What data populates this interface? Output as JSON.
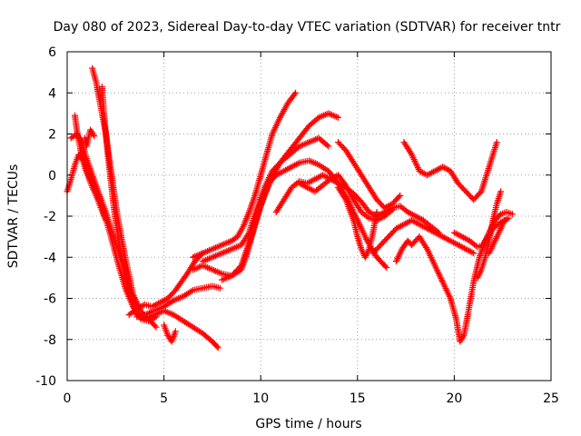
{
  "chart_data": {
    "type": "scatter",
    "title": "Day 080 of 2023, Sidereal Day-to-day VTEC variation (SDTVAR) for receiver tntr",
    "xlabel": "GPS time / hours",
    "ylabel": "SDTVAR / TECUs",
    "xlim": [
      0,
      25
    ],
    "ylim": [
      -10,
      6
    ],
    "xticks": [
      0,
      5,
      10,
      15,
      20,
      25
    ],
    "yticks": [
      -10,
      -8,
      -6,
      -4,
      -2,
      0,
      2,
      4,
      6
    ],
    "grid": true,
    "marker": "+",
    "color": "#ff0000",
    "series": [
      {
        "x": [
          1.3,
          1.5,
          1.7,
          2.0,
          2.3,
          2.6,
          3.0,
          3.4,
          3.8,
          4.2,
          4.6
        ],
        "y": [
          5.2,
          4.5,
          3.5,
          2.0,
          0.0,
          -2.0,
          -4.0,
          -5.8,
          -6.6,
          -7.0,
          -7.4
        ]
      },
      {
        "x": [
          1.8,
          1.9,
          2.1,
          2.4,
          2.7,
          3.0,
          3.3,
          3.6,
          4.0,
          4.5,
          5.0,
          5.5,
          6.0,
          6.5,
          7.0,
          7.5,
          7.8
        ],
        "y": [
          4.3,
          3.0,
          1.0,
          -1.5,
          -3.5,
          -5.0,
          -6.0,
          -6.8,
          -7.0,
          -6.8,
          -6.6,
          -6.8,
          -7.1,
          -7.4,
          -7.7,
          -8.1,
          -8.4
        ]
      },
      {
        "x": [
          0.0,
          0.2,
          0.4,
          0.6,
          0.9,
          1.2,
          1.5,
          1.8,
          2.2,
          2.6,
          3.0,
          3.4,
          3.8,
          4.2,
          4.6
        ],
        "y": [
          -0.8,
          -0.2,
          0.5,
          1.0,
          0.6,
          -0.2,
          -0.8,
          -1.5,
          -2.8,
          -4.2,
          -5.5,
          -6.4,
          -7.0,
          -7.1,
          -6.9
        ]
      },
      {
        "x": [
          0.2,
          0.5,
          0.8,
          1.0,
          1.3,
          1.6,
          2.0,
          2.4,
          2.8,
          3.2
        ],
        "y": [
          1.8,
          2.0,
          1.5,
          0.8,
          0.0,
          -0.8,
          -1.8,
          -3.0,
          -4.2,
          -5.4
        ]
      },
      {
        "x": [
          0.4,
          0.5,
          0.7,
          0.9,
          1.1,
          1.3,
          1.5,
          1.7,
          2.0
        ],
        "y": [
          2.9,
          2.2,
          1.2,
          0.4,
          -0.1,
          -0.6,
          -1.0,
          -1.5,
          -2.2
        ]
      },
      {
        "x": [
          0.9,
          1.0,
          1.2,
          1.4
        ],
        "y": [
          1.8,
          1.4,
          2.2,
          1.9
        ]
      },
      {
        "x": [
          3.2,
          3.6,
          4.0,
          4.4,
          4.8,
          5.2,
          5.6,
          6.2,
          6.6,
          7.0
        ],
        "y": [
          -6.8,
          -6.5,
          -6.3,
          -6.4,
          -6.2,
          -6.0,
          -5.6,
          -4.8,
          -4.2,
          -3.8
        ]
      },
      {
        "x": [
          3.6,
          4.0,
          4.5,
          5.0,
          5.5,
          6.0,
          6.5,
          7.0,
          7.5,
          7.9
        ],
        "y": [
          -6.9,
          -6.8,
          -6.6,
          -6.4,
          -6.1,
          -5.9,
          -5.6,
          -5.5,
          -5.4,
          -5.5
        ]
      },
      {
        "x": [
          5.0,
          5.2,
          5.4,
          5.6
        ],
        "y": [
          -7.3,
          -7.8,
          -8.1,
          -7.6
        ]
      },
      {
        "x": [
          6.5,
          7.0,
          7.5,
          8.0,
          8.5,
          8.8,
          9.1,
          9.4,
          9.7,
          10.0,
          10.3,
          10.6,
          11.0,
          11.4,
          11.8
        ],
        "y": [
          -4.0,
          -3.8,
          -3.6,
          -3.4,
          -3.2,
          -3.0,
          -2.5,
          -1.8,
          -1.0,
          0.0,
          1.0,
          2.0,
          2.8,
          3.5,
          4.0
        ]
      },
      {
        "x": [
          6.5,
          7.0,
          7.5,
          8.0,
          8.5,
          9.0,
          9.5,
          10.0,
          10.5,
          11.0,
          11.5,
          12.0,
          12.5,
          13.0,
          13.5,
          14.0
        ],
        "y": [
          -4.6,
          -4.4,
          -4.6,
          -4.8,
          -4.9,
          -4.4,
          -3.0,
          -1.5,
          -0.3,
          0.6,
          1.2,
          1.8,
          2.4,
          2.8,
          3.0,
          2.8
        ]
      },
      {
        "x": [
          7.0,
          7.5,
          8.0,
          8.5,
          9.0,
          9.4,
          9.8,
          10.2,
          10.6,
          11.0,
          11.5,
          12.0,
          12.5,
          13.0,
          13.5
        ],
        "y": [
          -4.2,
          -4.0,
          -3.8,
          -3.6,
          -3.4,
          -2.8,
          -1.6,
          -0.6,
          0.2,
          0.6,
          1.0,
          1.4,
          1.6,
          1.8,
          1.4
        ]
      },
      {
        "x": [
          8.0,
          8.5,
          9.0,
          9.3,
          9.6,
          9.9,
          10.2,
          10.5,
          10.8,
          11.2,
          11.6,
          12.0,
          12.5,
          13.0,
          13.5,
          14.0,
          14.5,
          15.0,
          15.5,
          16.0,
          16.5
        ],
        "y": [
          -5.1,
          -4.9,
          -4.6,
          -3.8,
          -2.8,
          -1.8,
          -0.9,
          -0.3,
          0.0,
          0.2,
          0.4,
          0.6,
          0.7,
          0.5,
          0.2,
          -0.4,
          -1.2,
          -2.2,
          -3.2,
          -4.0,
          -4.5
        ]
      },
      {
        "x": [
          10.8,
          11.2,
          11.6,
          12.0,
          12.4,
          12.8,
          13.2,
          13.6,
          14.0,
          14.4,
          14.8,
          15.2,
          15.6,
          16.0,
          16.4,
          16.8,
          17.2,
          17.6,
          18.0,
          18.4,
          18.8,
          19.2
        ],
        "y": [
          -1.8,
          -1.2,
          -0.6,
          -0.3,
          -0.4,
          -0.2,
          0.0,
          -0.2,
          -0.4,
          -0.6,
          -0.9,
          -1.3,
          -1.8,
          -2.0,
          -1.8,
          -1.6,
          -1.5,
          -1.8,
          -2.0,
          -2.2,
          -2.5,
          -2.8
        ]
      },
      {
        "x": [
          12.0,
          12.4,
          12.8,
          13.2,
          13.6,
          14.0,
          14.4,
          14.8,
          15.2,
          15.6,
          16.0,
          16.4,
          16.8
        ],
        "y": [
          -0.4,
          -0.6,
          -0.8,
          -0.5,
          -0.2,
          0.0,
          -0.5,
          -1.2,
          -1.8,
          -2.1,
          -2.2,
          -2.0,
          -1.7
        ]
      },
      {
        "x": [
          14.0,
          14.4,
          14.8,
          15.2,
          15.6,
          16.0,
          16.4,
          16.8,
          17.2
        ],
        "y": [
          1.6,
          1.2,
          0.6,
          0.0,
          -0.6,
          -1.2,
          -1.6,
          -1.4,
          -1.0
        ]
      },
      {
        "x": [
          14.0,
          14.4,
          14.8,
          15.0,
          15.2,
          15.4,
          15.6,
          15.8,
          16.0
        ],
        "y": [
          -0.6,
          -1.2,
          -2.2,
          -3.0,
          -3.6,
          -4.0,
          -3.6,
          -2.8,
          -1.8
        ]
      },
      {
        "x": [
          15.8,
          16.2,
          16.6,
          17.0,
          17.4,
          17.8,
          18.2,
          18.6,
          19.0,
          19.4,
          19.8,
          20.2,
          20.6,
          21.0
        ],
        "y": [
          -3.8,
          -3.4,
          -3.0,
          -2.6,
          -2.4,
          -2.2,
          -2.4,
          -2.6,
          -2.8,
          -3.0,
          -3.2,
          -3.4,
          -3.6,
          -3.8
        ]
      },
      {
        "x": [
          17.8,
          18.2,
          18.6,
          19.0,
          19.4,
          19.8,
          20.1,
          20.3,
          20.5,
          20.7,
          21.0,
          21.3,
          21.6,
          22.0,
          22.4,
          22.8
        ],
        "y": [
          -3.4,
          -3.0,
          -3.6,
          -4.4,
          -5.2,
          -6.0,
          -7.0,
          -8.1,
          -7.8,
          -6.8,
          -5.2,
          -4.0,
          -3.2,
          -2.6,
          -2.3,
          -2.1
        ]
      },
      {
        "x": [
          17.0,
          17.3,
          17.6,
          17.8
        ],
        "y": [
          -4.2,
          -3.6,
          -3.2,
          -3.4
        ]
      },
      {
        "x": [
          17.4,
          17.8,
          18.2,
          18.6,
          19.0,
          19.4,
          19.8,
          20.2,
          20.6,
          21.0,
          21.4,
          21.8,
          22.2
        ],
        "y": [
          1.6,
          1.0,
          0.2,
          0.0,
          0.2,
          0.4,
          0.2,
          -0.4,
          -0.8,
          -1.2,
          -0.8,
          0.4,
          1.6
        ]
      },
      {
        "x": [
          20.0,
          20.4,
          20.8,
          21.2,
          21.5,
          21.8,
          22.1,
          22.4,
          22.7,
          23.0
        ],
        "y": [
          -2.8,
          -3.0,
          -3.2,
          -3.5,
          -3.4,
          -2.8,
          -2.2,
          -1.9,
          -1.8,
          -1.9
        ]
      },
      {
        "x": [
          21.2,
          21.4,
          21.6,
          21.8,
          22.0,
          22.2,
          22.4
        ],
        "y": [
          -5.0,
          -4.6,
          -4.0,
          -3.2,
          -2.2,
          -1.4,
          -0.8
        ]
      },
      {
        "x": [
          21.8,
          22.0,
          22.2,
          22.4,
          22.6
        ],
        "y": [
          -3.8,
          -3.4,
          -3.0,
          -2.6,
          -2.2
        ]
      }
    ]
  }
}
